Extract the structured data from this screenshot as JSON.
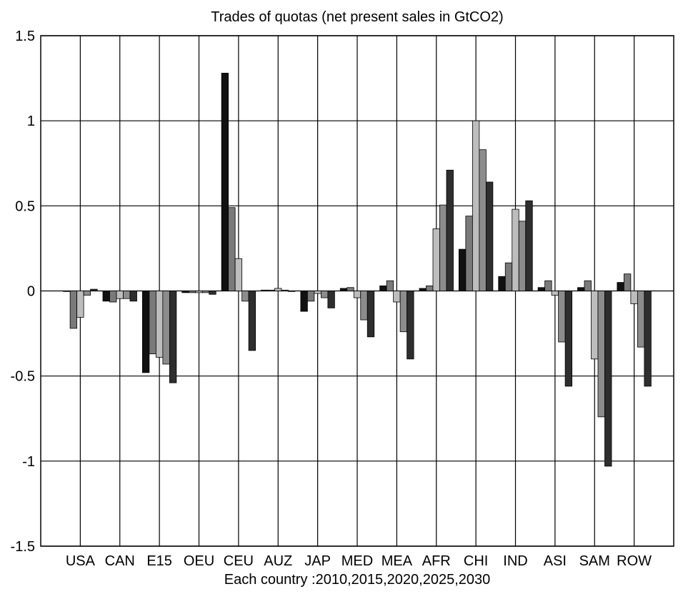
{
  "chart_data": {
    "type": "bar",
    "title": "Trades of quotas (net present sales in GtCO2)",
    "xlabel": "Each country :2010,2015,2020,2025,2030",
    "ylabel": "",
    "ylim": [
      -1.5,
      1.5
    ],
    "yticks": [
      "1.5",
      "1",
      "0.5",
      "0",
      "-0.5",
      "-1",
      "-1.5"
    ],
    "ytick_values": [
      1.5,
      1,
      0.5,
      0,
      -0.5,
      -1,
      -1.5
    ],
    "grid": true,
    "legend": "none",
    "categories": [
      "USA",
      "CAN",
      "E15",
      "OEU",
      "CEU",
      "AUZ",
      "JAP",
      "MED",
      "MEA",
      "AFR",
      "CHI",
      "IND",
      "ASI",
      "SAM",
      "ROW"
    ],
    "series": [
      {
        "values": [
          0.0,
          -0.06,
          -0.48,
          -0.01,
          1.28,
          0.005,
          -0.12,
          0.015,
          0.03,
          0.015,
          0.245,
          0.085,
          0.02,
          0.02,
          0.05
        ]
      },
      {
        "values": [
          -0.22,
          -0.065,
          -0.37,
          -0.01,
          0.49,
          0.005,
          -0.06,
          0.02,
          0.06,
          0.03,
          0.44,
          0.165,
          0.06,
          0.06,
          0.1
        ]
      },
      {
        "values": [
          -0.155,
          -0.045,
          -0.39,
          -0.01,
          0.19,
          0.015,
          -0.015,
          -0.04,
          -0.065,
          0.365,
          1.0,
          0.48,
          -0.025,
          -0.4,
          -0.075
        ]
      },
      {
        "values": [
          -0.025,
          -0.045,
          -0.43,
          -0.01,
          -0.06,
          0.005,
          -0.04,
          -0.17,
          -0.24,
          0.505,
          0.83,
          0.41,
          -0.3,
          -0.74,
          -0.33
        ]
      },
      {
        "values": [
          0.01,
          -0.06,
          -0.54,
          -0.02,
          -0.35,
          0.0,
          -0.1,
          -0.27,
          -0.4,
          0.71,
          0.64,
          0.53,
          -0.56,
          -1.03,
          -0.56
        ]
      }
    ],
    "colors": [
      "#111111",
      "#7a7a7a",
      "#bdbdbd",
      "#8c8c8c",
      "#2e2e2e"
    ]
  }
}
